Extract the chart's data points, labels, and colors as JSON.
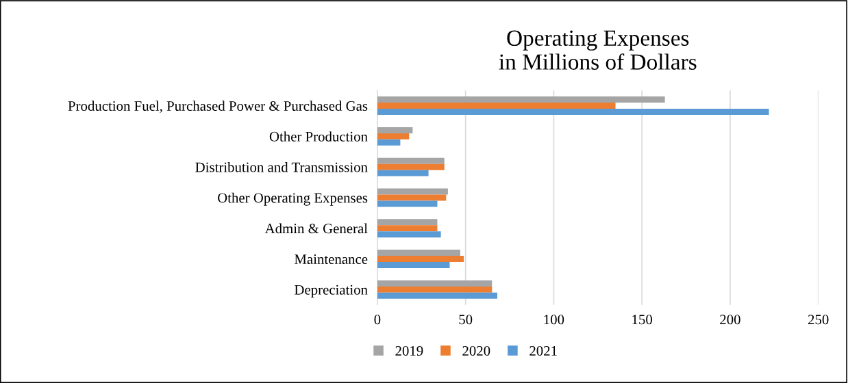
{
  "chart_data": {
    "type": "bar",
    "orientation": "horizontal",
    "title": "Operating Expenses\nin Millions of Dollars",
    "categories": [
      "Production Fuel, Purchased Power & Purchased Gas",
      "Other Production",
      "Distribution and Transmission",
      "Other Operating Expenses",
      "Admin & General",
      "Maintenance",
      "Depreciation"
    ],
    "series": [
      {
        "name": "2019",
        "color": "#a5a5a5",
        "values": [
          163,
          20,
          38,
          40,
          34,
          47,
          65
        ]
      },
      {
        "name": "2020",
        "color": "#ed7d31",
        "values": [
          135,
          18,
          38,
          39,
          34,
          49,
          65
        ]
      },
      {
        "name": "2021",
        "color": "#5b9bd5",
        "values": [
          222,
          13,
          29,
          34,
          36,
          41,
          68
        ]
      }
    ],
    "xlim": [
      0,
      250
    ],
    "xticks": [
      0,
      50,
      100,
      150,
      200,
      250
    ],
    "grid": "x",
    "legend": "bottom"
  }
}
